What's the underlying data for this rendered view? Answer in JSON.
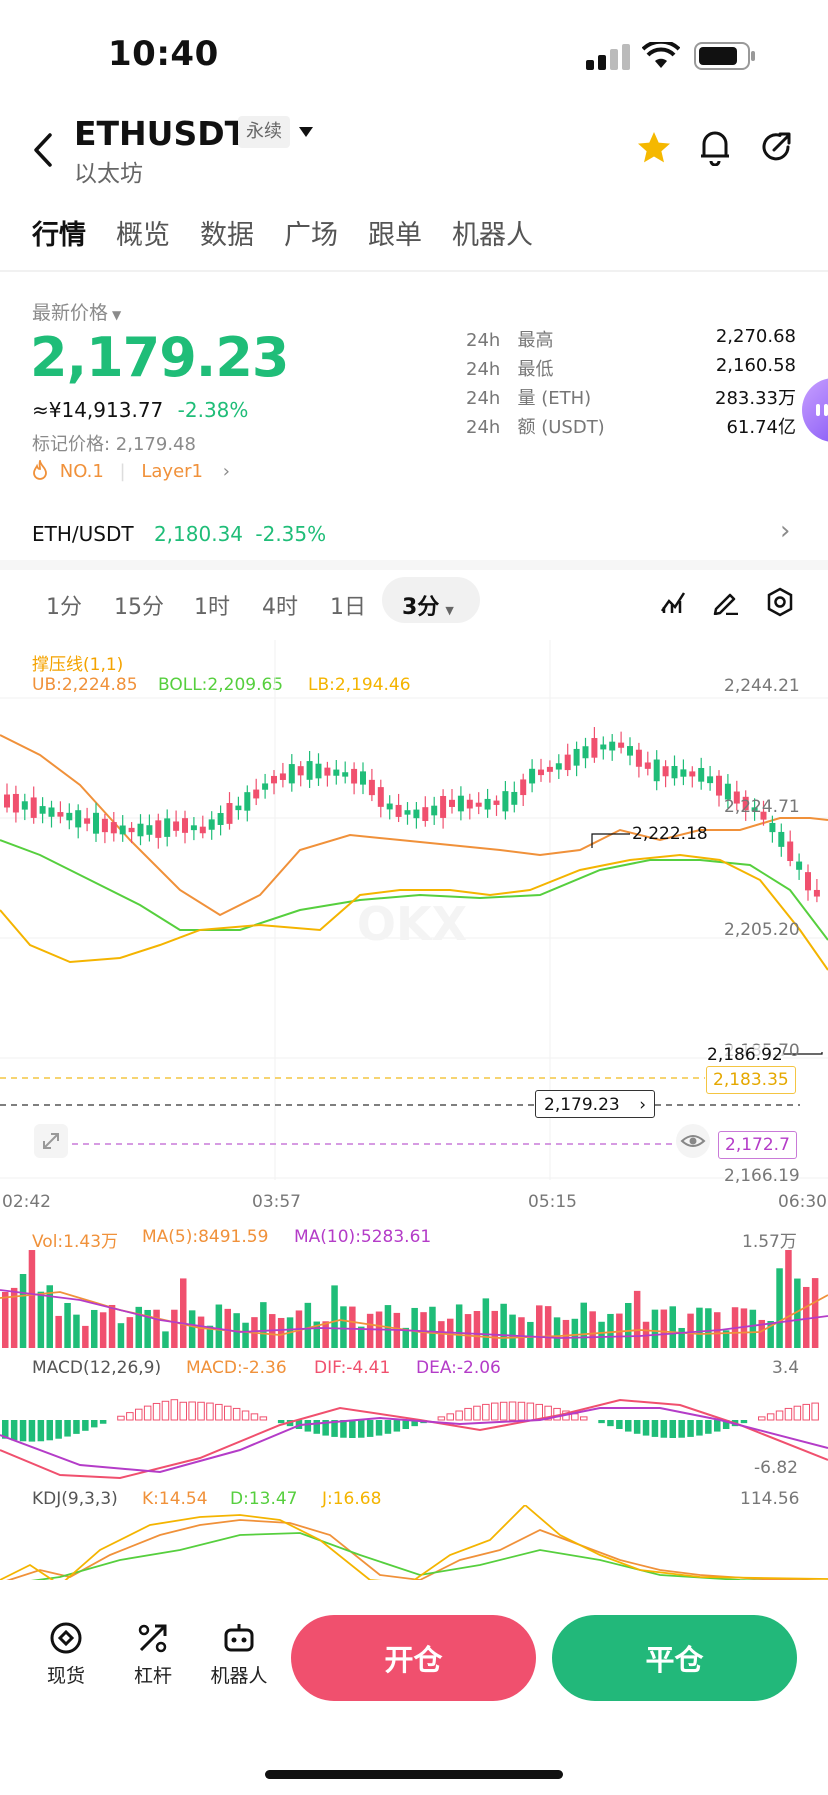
{
  "status": {
    "time": "10:40"
  },
  "header": {
    "symbol": "ETHUSDT",
    "contract_badge": "永续",
    "subtitle": "以太坊",
    "icons": [
      "back-icon",
      "chevron-down-icon",
      "star-icon",
      "bell-icon",
      "share-icon"
    ]
  },
  "tabs": [
    "行情",
    "概览",
    "数据",
    "广场",
    "跟单",
    "机器人"
  ],
  "price": {
    "label": "最新价格",
    "last": "2,179.23",
    "cny": "≈¥14,913.77",
    "change": "-2.38%",
    "mark_label": "标记价格: 2,179.48",
    "tag_rank": "NO.1",
    "tag_sector": "Layer1"
  },
  "stats": [
    {
      "period": "24h",
      "label": "最高",
      "value": "2,270.68"
    },
    {
      "period": "24h",
      "label": "最低",
      "value": "2,160.58"
    },
    {
      "period": "24h",
      "label": "量 (ETH)",
      "value": "283.33万"
    },
    {
      "period": "24h",
      "label": "额 (USDT)",
      "value": "61.74亿"
    }
  ],
  "spot": {
    "pair": "ETH/USDT",
    "price": "2,180.34",
    "change": "-2.35%"
  },
  "intervals": [
    "1分",
    "15分",
    "1时",
    "4时",
    "1日",
    "3分"
  ],
  "chart": {
    "indicator_title": "撑压线(1,1)",
    "ub": "UB:2,224.85",
    "boll": "BOLL:2,209.65",
    "lb": "LB:2,194.46",
    "y_labels": [
      "2,244.21",
      "2,224.71",
      "2,205.20",
      "2,185.70",
      "2,166.19"
    ],
    "x_labels": [
      "02:42",
      "03:57",
      "05:15",
      "06:30"
    ],
    "high_marker": "2,222.18",
    "low_marker": "2,186.92",
    "level_orange": "2,183.35",
    "level_current": "2,179.23",
    "level_purple": "2,172.7",
    "vol_legend": "Vol:1.43万",
    "vol_ma5": "MA(5):8491.59",
    "vol_ma10": "MA(10):5283.61",
    "vol_max": "1.57万",
    "macd_title": "MACD(12,26,9)",
    "macd_val": "MACD:-2.36",
    "dif_val": "DIF:-4.41",
    "dea_val": "DEA:-2.06",
    "macd_max": "3.4",
    "macd_min": "-6.82",
    "kdj_title": "KDJ(9,3,3)",
    "k_val": "K:14.54",
    "d_val": "D:13.47",
    "j_val": "J:16.68",
    "kdj_max": "114.56",
    "colors": {
      "up": "#f0506e",
      "down": "#1fbd78",
      "ub": "#f0913a",
      "boll": "#56cf3e",
      "lb": "#f4b400",
      "ma10": "#b43cc8"
    }
  },
  "bottom": {
    "nav": [
      "现货",
      "杠杆",
      "机器人"
    ],
    "open_label": "开仓",
    "close_label": "平仓"
  }
}
